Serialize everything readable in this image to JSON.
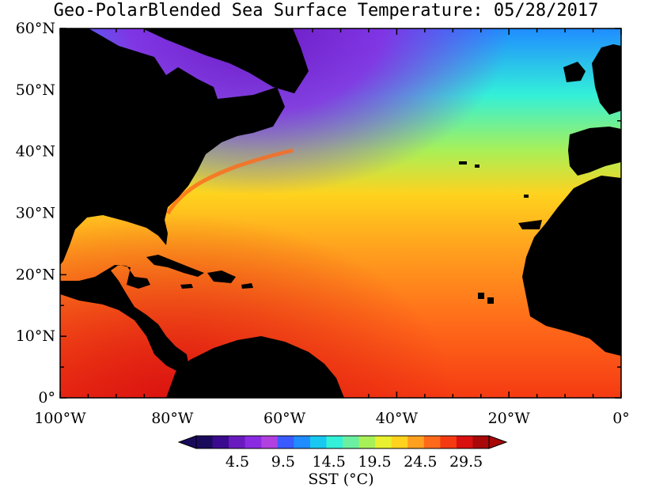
{
  "title": "Geo-PolarBlended Sea Surface Temperature: 05/28/2017",
  "colorbar": {
    "label": "SST (°C)",
    "ticks": [
      "4.5",
      "9.5",
      "14.5",
      "19.5",
      "24.5",
      "29.5"
    ],
    "tick_values": [
      4.5,
      9.5,
      14.5,
      19.5,
      24.5,
      29.5
    ],
    "range": [
      0,
      32
    ],
    "colors": [
      "#1a0a5c",
      "#3a0b8e",
      "#6a1bbf",
      "#8a2be2",
      "#b040e0",
      "#3a5bff",
      "#1f8cff",
      "#19c8f0",
      "#33f0d8",
      "#6af0a0",
      "#a8f058",
      "#e8f030",
      "#ffd21e",
      "#ffa01e",
      "#ff6a1a",
      "#f53a12",
      "#d81010",
      "#a80808"
    ]
  },
  "map": {
    "lat_labels": [
      "0°",
      "10°N",
      "20°N",
      "30°N",
      "40°N",
      "50°N",
      "60°N"
    ],
    "lat_values": [
      0,
      10,
      20,
      30,
      40,
      50,
      60
    ],
    "lon_labels": [
      "100°W",
      "80°W",
      "60°W",
      "40°W",
      "20°W",
      "0°"
    ],
    "lon_values": [
      -100,
      -80,
      -60,
      -40,
      -20,
      0
    ],
    "lon_range": [
      -100,
      0
    ],
    "lat_range": [
      0,
      60
    ],
    "land_color": "#000000"
  }
}
